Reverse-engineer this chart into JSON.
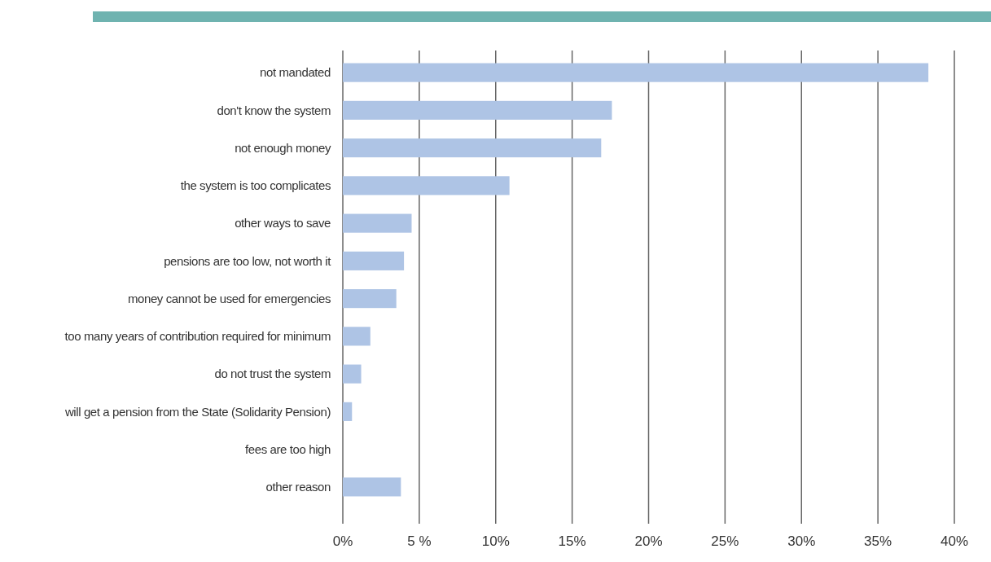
{
  "chart_data": {
    "type": "bar",
    "orientation": "horizontal",
    "categories": [
      "not mandated",
      "don't know the system",
      "not enough money",
      "the system is too complicates",
      "other ways to save",
      "pensions are too low, not worth it",
      "money cannot be used for emergencies",
      "too many years of contribution required for minimum",
      "do not trust the system",
      "will get a pension from the State (Solidarity Pension)",
      "fees are too high",
      "other reason"
    ],
    "values": [
      38.3,
      17.6,
      16.9,
      10.9,
      4.5,
      4.0,
      3.5,
      1.8,
      1.2,
      0.6,
      0,
      3.8
    ],
    "color": "#aec4e5",
    "xlim": [
      0,
      40
    ],
    "xticks": [
      {
        "value": 0,
        "label": "0%"
      },
      {
        "value": 5,
        "label": "5 %"
      },
      {
        "value": 10,
        "label": "10%"
      },
      {
        "value": 15,
        "label": "15%"
      },
      {
        "value": 20,
        "label": "20%"
      },
      {
        "value": 25,
        "label": "25%"
      },
      {
        "value": 30,
        "label": "30%"
      },
      {
        "value": 35,
        "label": "35%"
      },
      {
        "value": 40,
        "label": "40%"
      }
    ],
    "grid": "x"
  }
}
